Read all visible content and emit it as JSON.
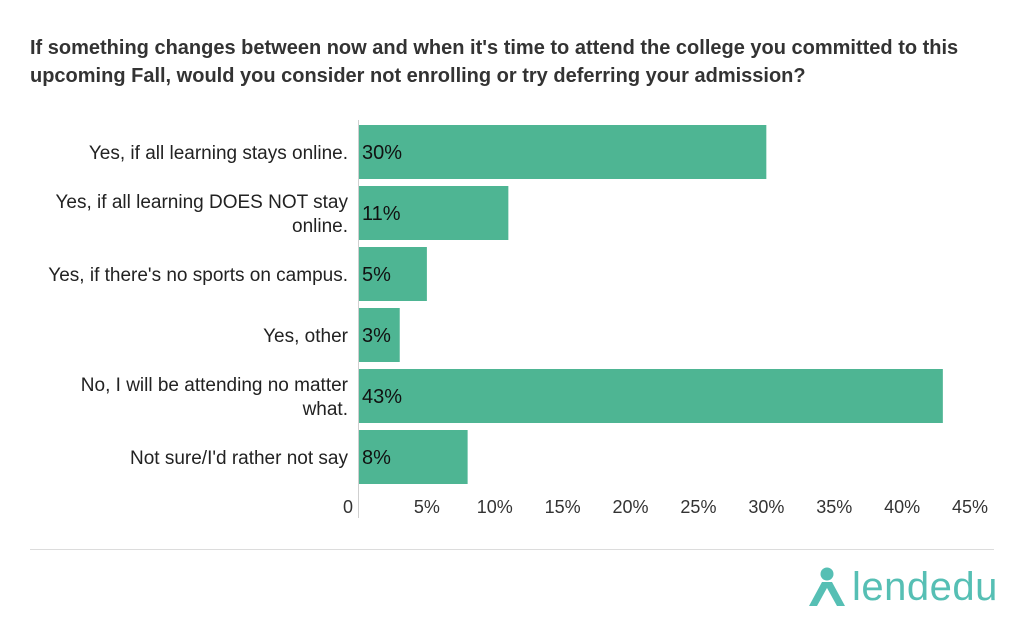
{
  "chart_data": {
    "type": "bar",
    "orientation": "horizontal",
    "title": "If something changes between now and when it's time to attend the college you committed to this upcoming Fall, would you consider not enrolling or try deferring your admission?",
    "categories": [
      [
        "Yes, if all learning stays online."
      ],
      [
        "Yes, if all learning DOES NOT stay",
        "online."
      ],
      [
        "Yes, if there's no sports on campus."
      ],
      [
        "Yes, other"
      ],
      [
        "No, I will be attending no matter",
        "what."
      ],
      [
        "Not sure/I'd rather not say"
      ]
    ],
    "values": [
      30,
      11,
      5,
      3,
      43,
      8
    ],
    "value_labels": [
      "30%",
      "11%",
      "5%",
      "3%",
      "43%",
      "8%"
    ],
    "xlim": [
      0,
      45
    ],
    "x_ticks": [
      0,
      5,
      10,
      15,
      20,
      25,
      30,
      35,
      40,
      45
    ],
    "x_tick_labels": [
      "0",
      "5%",
      "10%",
      "15%",
      "20%",
      "25%",
      "30%",
      "35%",
      "40%",
      "45%"
    ],
    "bar_color": "#4eb593",
    "grid": false
  },
  "brand": {
    "name": "lendedu",
    "color": "#56bfb4"
  }
}
